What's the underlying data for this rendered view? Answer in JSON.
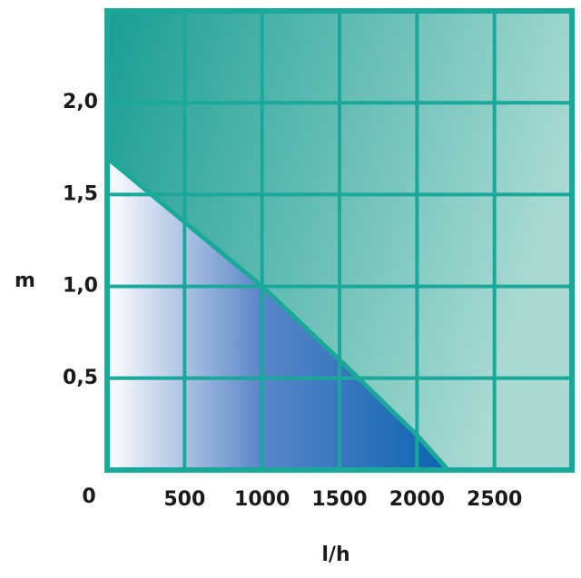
{
  "chart_data": {
    "type": "area",
    "x": [
      0,
      500,
      1000,
      1500,
      2000,
      2200
    ],
    "values": [
      1.7,
      1.35,
      1.0,
      0.6,
      0.19,
      0
    ],
    "xlim": [
      0,
      3000
    ],
    "xticks": [
      500,
      1000,
      1500,
      2000,
      2500
    ],
    "ylim": [
      0,
      2.5
    ],
    "yticks": [
      0,
      {
        "value": 0.5,
        "label": "0,5"
      },
      {
        "value": 1.0,
        "label": "1,0"
      },
      {
        "value": 1.5,
        "label": "1,5"
      },
      {
        "value": 2.0,
        "label": "2,0"
      }
    ],
    "x_label": "l/h",
    "y_label": "m",
    "grid": true,
    "color": "#1aa89a"
  }
}
